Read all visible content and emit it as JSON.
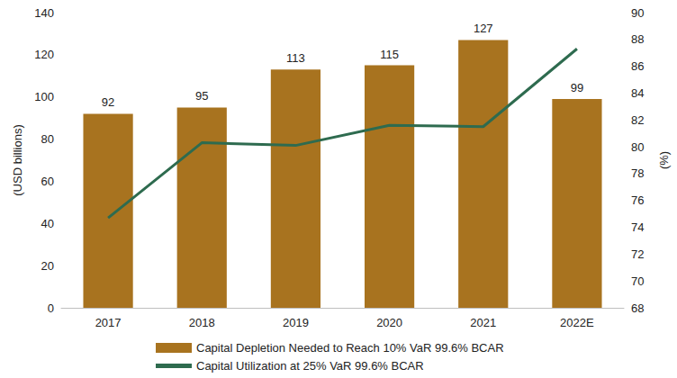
{
  "chart_data": {
    "type": "bar",
    "categories": [
      "2017",
      "2018",
      "2019",
      "2020",
      "2021",
      "2022E"
    ],
    "series": [
      {
        "name": "Capital Depletion Needed to Reach 10% VaR 99.6% BCAR",
        "type": "bar",
        "color": "#A8731F",
        "values": [
          92,
          95,
          113,
          115,
          127,
          99
        ],
        "data_labels": true
      },
      {
        "name": "Capital Utilization at 25% VaR 99.6% BCAR",
        "type": "line",
        "color": "#2E6B4F",
        "axis": "y2",
        "values": [
          74.7,
          80.3,
          80.1,
          81.6,
          81.5,
          87.3
        ]
      }
    ],
    "ylabel": "(USD billions)",
    "y2label": "(%)",
    "ylim": [
      0,
      140
    ],
    "yticks": [
      0,
      20,
      40,
      60,
      80,
      100,
      120,
      140
    ],
    "y2lim": [
      68,
      90
    ],
    "y2ticks": [
      68,
      70,
      72,
      74,
      76,
      78,
      80,
      82,
      84,
      86,
      88,
      90
    ],
    "grid": false,
    "legend": "bottom"
  }
}
